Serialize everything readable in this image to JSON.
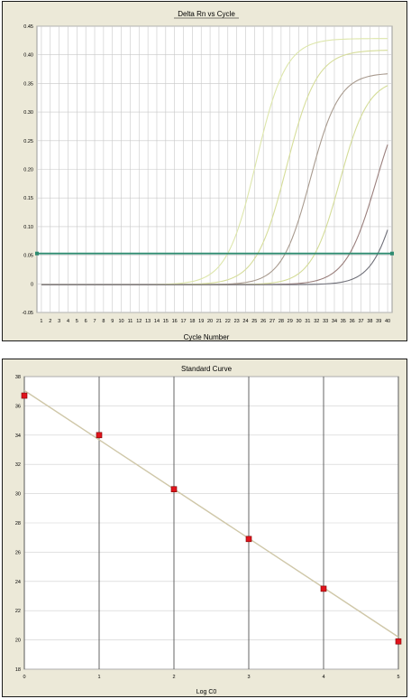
{
  "chart_data": [
    {
      "type": "line",
      "title": "Delta Rn vs Cycle",
      "xlabel": "Cycle Number",
      "ylabel": "",
      "x_ticks": [
        1,
        2,
        3,
        4,
        5,
        6,
        7,
        8,
        9,
        10,
        11,
        12,
        13,
        14,
        15,
        16,
        17,
        18,
        19,
        20,
        21,
        22,
        23,
        24,
        25,
        26,
        27,
        28,
        29,
        30,
        31,
        32,
        33,
        34,
        35,
        36,
        37,
        38,
        39,
        40
      ],
      "y_ticks": [
        "-0.05",
        "0",
        "0.05",
        "0.10",
        "0.15",
        "0.20",
        "0.25",
        "0.30",
        "0.35",
        "0.40",
        "0.45"
      ],
      "xlim": [
        0.5,
        40.5
      ],
      "ylim": [
        -0.05,
        0.45
      ],
      "grid": true,
      "threshold": 0.053,
      "threshold_color": "#2e8b70",
      "series": [
        {
          "color": "#dde6aa",
          "max": 0.43,
          "midpoint": 25.2,
          "slope": 0.6
        },
        {
          "color": "#d6dd9a",
          "max": 0.41,
          "midpoint": 28.6,
          "slope": 0.58
        },
        {
          "color": "#a89a8e",
          "max": 0.37,
          "midpoint": 31.3,
          "slope": 0.62
        },
        {
          "color": "#d4dc98",
          "max": 0.36,
          "midpoint": 34.6,
          "slope": 0.62
        },
        {
          "color": "#9a7f7c",
          "max": 0.36,
          "midpoint": 38.7,
          "slope": 0.58
        },
        {
          "color": "#6f6f78",
          "max": 0.35,
          "midpoint": 41.5,
          "slope": 0.65
        }
      ]
    },
    {
      "type": "scatter",
      "title": "Standard Curve",
      "xlabel": "Log C0",
      "ylabel": "",
      "x_ticks": [
        0,
        1,
        2,
        3,
        4,
        5
      ],
      "y_ticks": [
        18,
        20,
        22,
        24,
        26,
        28,
        30,
        32,
        34,
        36,
        38
      ],
      "xlim": [
        0,
        5
      ],
      "ylim": [
        18,
        38
      ],
      "grid": true,
      "points": [
        {
          "x": 0,
          "y": 36.7
        },
        {
          "x": 1,
          "y": 34.0
        },
        {
          "x": 2,
          "y": 30.3
        },
        {
          "x": 3,
          "y": 26.9
        },
        {
          "x": 4,
          "y": 23.5
        },
        {
          "x": 5,
          "y": 19.9
        }
      ],
      "fit_line": {
        "y_at_x0": 37.05,
        "y_at_x5": 20.2,
        "color": "#cfc7a8"
      },
      "marker_color": "#e0141c"
    }
  ]
}
